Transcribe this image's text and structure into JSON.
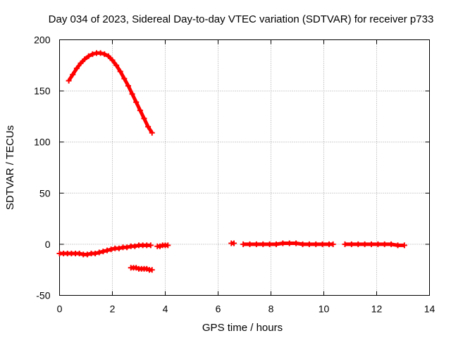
{
  "chart_data": {
    "type": "scatter",
    "title": "Day 034 of 2023, Sidereal Day-to-day VTEC variation (SDTVAR) for receiver p733",
    "xlabel": "GPS time / hours",
    "ylabel": "SDTVAR / TECUs",
    "xlim": [
      0,
      14
    ],
    "ylim": [
      -50,
      200
    ],
    "xticks": [
      0,
      2,
      4,
      6,
      8,
      10,
      12,
      14
    ],
    "yticks": [
      -50,
      0,
      50,
      100,
      150,
      200
    ],
    "xtick_labels": [
      "0",
      "2",
      "4",
      "6",
      "8",
      "10",
      "12",
      "14"
    ],
    "ytick_labels": [
      "-50",
      "0",
      "50",
      "100",
      "150",
      "200"
    ],
    "grid": true,
    "marker": "+",
    "color": "#ff0000",
    "series": [
      {
        "name": "arc-high",
        "x": [
          0.35,
          0.5,
          0.65,
          0.8,
          0.95,
          1.1,
          1.25,
          1.4,
          1.55,
          1.7,
          1.85,
          2.0,
          2.15,
          2.3,
          2.45,
          2.6,
          2.75,
          2.9,
          3.05,
          3.2,
          3.35,
          3.5
        ],
        "y": [
          160,
          166,
          172,
          177,
          181,
          184,
          186,
          187,
          187,
          186,
          184,
          180,
          175,
          169,
          162,
          155,
          147,
          139,
          131,
          123,
          115,
          109
        ]
      },
      {
        "name": "arc-low-1",
        "x": [
          0.0,
          0.15,
          0.3,
          0.45,
          0.6,
          0.75,
          0.9,
          1.05,
          1.2,
          1.35,
          1.5,
          1.65,
          1.8,
          1.95,
          2.1,
          2.25,
          2.4,
          2.55,
          2.7,
          2.85,
          3.0,
          3.15,
          3.3,
          3.45
        ],
        "y": [
          -9,
          -9,
          -9,
          -9,
          -9,
          -9,
          -10,
          -10,
          -9,
          -9,
          -8,
          -7,
          -6,
          -5,
          -4,
          -4,
          -3,
          -3,
          -2,
          -2,
          -1,
          -1,
          -1,
          -1
        ]
      },
      {
        "name": "arc-low-2",
        "x": [
          3.7,
          3.8,
          3.9,
          4.0,
          4.1
        ],
        "y": [
          -2,
          -2,
          -1,
          -1,
          -1
        ]
      },
      {
        "name": "arc-negative",
        "x": [
          2.7,
          2.8,
          2.9,
          3.0,
          3.1,
          3.2,
          3.3,
          3.4,
          3.5
        ],
        "y": [
          -23,
          -23,
          -23,
          -24,
          -24,
          -24,
          -24,
          -25,
          -25
        ]
      },
      {
        "name": "arc-late-1",
        "x": [
          6.5,
          6.6
        ],
        "y": [
          1,
          1
        ]
      },
      {
        "name": "arc-late-2",
        "x": [
          6.95,
          7.2,
          7.45,
          7.7,
          7.95,
          8.2,
          8.45,
          8.7,
          8.95,
          9.2,
          9.45,
          9.7,
          9.95,
          10.2,
          10.35
        ],
        "y": [
          0,
          0,
          0,
          0,
          0,
          0,
          1,
          1,
          1,
          0,
          0,
          0,
          0,
          0,
          0
        ]
      },
      {
        "name": "arc-late-3",
        "x": [
          10.8,
          11.05,
          11.3,
          11.55,
          11.8,
          12.05,
          12.3,
          12.55,
          12.8,
          13.05
        ],
        "y": [
          0,
          0,
          0,
          0,
          0,
          0,
          0,
          0,
          -1,
          -1
        ]
      }
    ]
  }
}
